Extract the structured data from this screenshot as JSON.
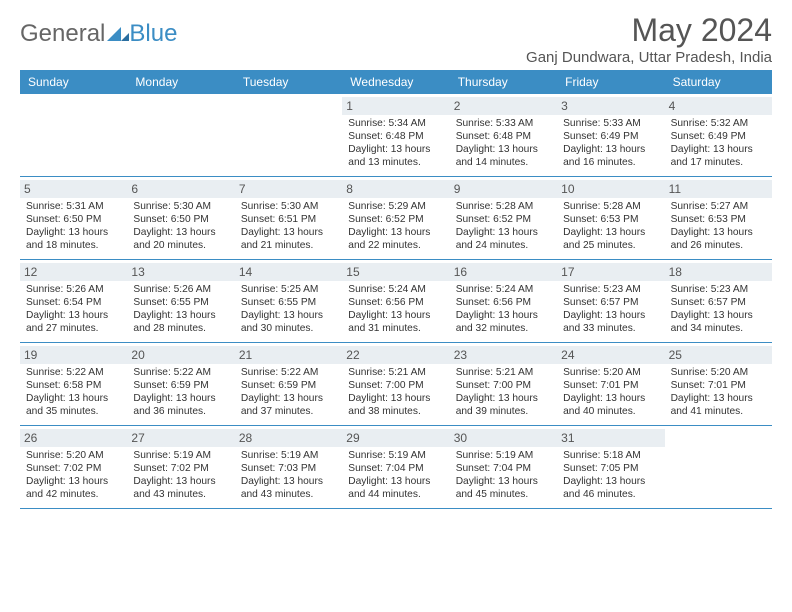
{
  "logo": {
    "part1": "General",
    "part2": "Blue"
  },
  "header": {
    "title": "May 2024",
    "subtitle": "Ganj Dundwara, Uttar Pradesh, India"
  },
  "colors": {
    "accent": "#3b8dc4",
    "daynum_bg": "#e9eef2",
    "text": "#333333"
  },
  "day_names": [
    "Sunday",
    "Monday",
    "Tuesday",
    "Wednesday",
    "Thursday",
    "Friday",
    "Saturday"
  ],
  "weeks": [
    [
      null,
      null,
      null,
      {
        "n": "1",
        "sr": "5:34 AM",
        "ss": "6:48 PM",
        "dl": "13 hours and 13 minutes."
      },
      {
        "n": "2",
        "sr": "5:33 AM",
        "ss": "6:48 PM",
        "dl": "13 hours and 14 minutes."
      },
      {
        "n": "3",
        "sr": "5:33 AM",
        "ss": "6:49 PM",
        "dl": "13 hours and 16 minutes."
      },
      {
        "n": "4",
        "sr": "5:32 AM",
        "ss": "6:49 PM",
        "dl": "13 hours and 17 minutes."
      }
    ],
    [
      {
        "n": "5",
        "sr": "5:31 AM",
        "ss": "6:50 PM",
        "dl": "13 hours and 18 minutes."
      },
      {
        "n": "6",
        "sr": "5:30 AM",
        "ss": "6:50 PM",
        "dl": "13 hours and 20 minutes."
      },
      {
        "n": "7",
        "sr": "5:30 AM",
        "ss": "6:51 PM",
        "dl": "13 hours and 21 minutes."
      },
      {
        "n": "8",
        "sr": "5:29 AM",
        "ss": "6:52 PM",
        "dl": "13 hours and 22 minutes."
      },
      {
        "n": "9",
        "sr": "5:28 AM",
        "ss": "6:52 PM",
        "dl": "13 hours and 24 minutes."
      },
      {
        "n": "10",
        "sr": "5:28 AM",
        "ss": "6:53 PM",
        "dl": "13 hours and 25 minutes."
      },
      {
        "n": "11",
        "sr": "5:27 AM",
        "ss": "6:53 PM",
        "dl": "13 hours and 26 minutes."
      }
    ],
    [
      {
        "n": "12",
        "sr": "5:26 AM",
        "ss": "6:54 PM",
        "dl": "13 hours and 27 minutes."
      },
      {
        "n": "13",
        "sr": "5:26 AM",
        "ss": "6:55 PM",
        "dl": "13 hours and 28 minutes."
      },
      {
        "n": "14",
        "sr": "5:25 AM",
        "ss": "6:55 PM",
        "dl": "13 hours and 30 minutes."
      },
      {
        "n": "15",
        "sr": "5:24 AM",
        "ss": "6:56 PM",
        "dl": "13 hours and 31 minutes."
      },
      {
        "n": "16",
        "sr": "5:24 AM",
        "ss": "6:56 PM",
        "dl": "13 hours and 32 minutes."
      },
      {
        "n": "17",
        "sr": "5:23 AM",
        "ss": "6:57 PM",
        "dl": "13 hours and 33 minutes."
      },
      {
        "n": "18",
        "sr": "5:23 AM",
        "ss": "6:57 PM",
        "dl": "13 hours and 34 minutes."
      }
    ],
    [
      {
        "n": "19",
        "sr": "5:22 AM",
        "ss": "6:58 PM",
        "dl": "13 hours and 35 minutes."
      },
      {
        "n": "20",
        "sr": "5:22 AM",
        "ss": "6:59 PM",
        "dl": "13 hours and 36 minutes."
      },
      {
        "n": "21",
        "sr": "5:22 AM",
        "ss": "6:59 PM",
        "dl": "13 hours and 37 minutes."
      },
      {
        "n": "22",
        "sr": "5:21 AM",
        "ss": "7:00 PM",
        "dl": "13 hours and 38 minutes."
      },
      {
        "n": "23",
        "sr": "5:21 AM",
        "ss": "7:00 PM",
        "dl": "13 hours and 39 minutes."
      },
      {
        "n": "24",
        "sr": "5:20 AM",
        "ss": "7:01 PM",
        "dl": "13 hours and 40 minutes."
      },
      {
        "n": "25",
        "sr": "5:20 AM",
        "ss": "7:01 PM",
        "dl": "13 hours and 41 minutes."
      }
    ],
    [
      {
        "n": "26",
        "sr": "5:20 AM",
        "ss": "7:02 PM",
        "dl": "13 hours and 42 minutes."
      },
      {
        "n": "27",
        "sr": "5:19 AM",
        "ss": "7:02 PM",
        "dl": "13 hours and 43 minutes."
      },
      {
        "n": "28",
        "sr": "5:19 AM",
        "ss": "7:03 PM",
        "dl": "13 hours and 43 minutes."
      },
      {
        "n": "29",
        "sr": "5:19 AM",
        "ss": "7:04 PM",
        "dl": "13 hours and 44 minutes."
      },
      {
        "n": "30",
        "sr": "5:19 AM",
        "ss": "7:04 PM",
        "dl": "13 hours and 45 minutes."
      },
      {
        "n": "31",
        "sr": "5:18 AM",
        "ss": "7:05 PM",
        "dl": "13 hours and 46 minutes."
      },
      null
    ]
  ],
  "labels": {
    "sunrise": "Sunrise:",
    "sunset": "Sunset:",
    "daylight": "Daylight:"
  }
}
